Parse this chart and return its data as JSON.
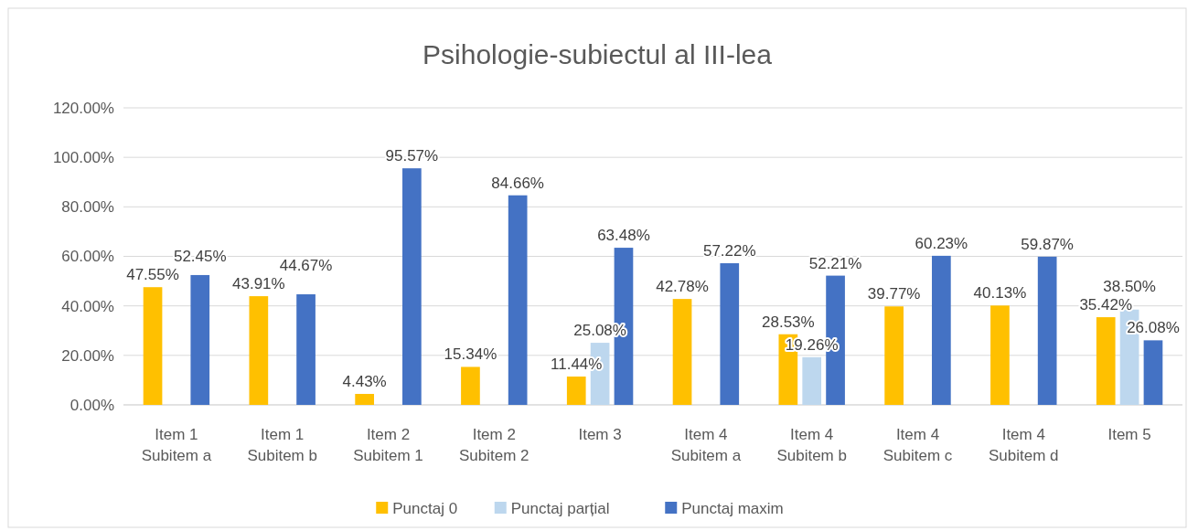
{
  "chart_data": {
    "type": "bar",
    "title": "Psihologie-subiectul al III-lea",
    "categories": [
      "Item 1 Subitem a",
      "Item 1 Subitem b",
      "Item 2 Subitem 1",
      "Item 2 Subitem 2",
      "Item 3",
      "Item 4 Subitem a",
      "Item 4 Subitem b",
      "Item 4 Subitem c",
      "Item 4 Subitem d",
      "Item 5"
    ],
    "series": [
      {
        "name": "Punctaj 0",
        "color": "#ffc000",
        "values": [
          47.55,
          43.91,
          4.43,
          15.34,
          11.44,
          42.78,
          28.53,
          39.77,
          40.13,
          35.42
        ],
        "value_labels": [
          "47.55%",
          "43.91%",
          "4.43%",
          "15.34%",
          "11.44%",
          "42.78%",
          "28.53%",
          "39.77%",
          "40.13%",
          "35.42%"
        ]
      },
      {
        "name": "Punctaj parțial",
        "color": "#bdd7ee",
        "values": [
          null,
          null,
          null,
          null,
          25.08,
          null,
          19.26,
          null,
          null,
          38.5
        ],
        "value_labels": [
          null,
          null,
          null,
          null,
          "25.08%",
          null,
          "19.26%",
          null,
          null,
          "38.50%"
        ]
      },
      {
        "name": "Punctaj maxim",
        "color": "#4472c4",
        "values": [
          52.45,
          44.67,
          95.57,
          84.66,
          63.48,
          57.22,
          52.21,
          60.23,
          59.87,
          26.08
        ],
        "value_labels": [
          "52.45%",
          "44.67%",
          "95.57%",
          "84.66%",
          "63.48%",
          "57.22%",
          "52.21%",
          "60.23%",
          "59.87%",
          "26.08%"
        ]
      }
    ],
    "ylim": [
      0,
      120
    ],
    "yticks": [
      {
        "value": 0,
        "label": "0.00%"
      },
      {
        "value": 20,
        "label": "20.00%"
      },
      {
        "value": 40,
        "label": "40.00%"
      },
      {
        "value": 60,
        "label": "60.00%"
      },
      {
        "value": 80,
        "label": "80.00%"
      },
      {
        "value": 100,
        "label": "100.00%"
      },
      {
        "value": 120,
        "label": "120.00%"
      }
    ],
    "grid": "y",
    "legend": "bottom"
  }
}
